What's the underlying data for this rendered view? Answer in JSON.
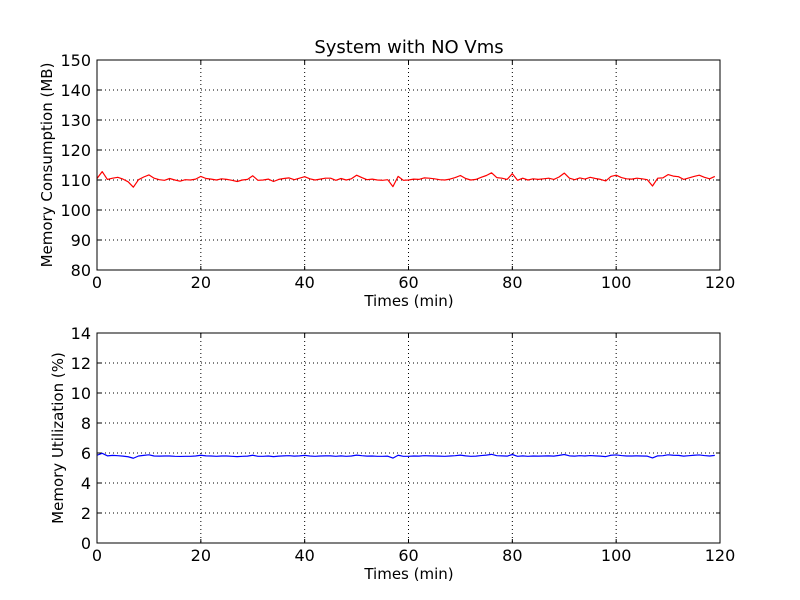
{
  "figure_title": "System with NO Vms",
  "chart_data": [
    {
      "type": "line",
      "title": "System with NO Vms",
      "xlabel": "Times (min)",
      "ylabel": "Memory Consumption (MB)",
      "xlim": [
        0,
        120
      ],
      "ylim": [
        80,
        150
      ],
      "xticks": [
        "0",
        "20",
        "40",
        "60",
        "80",
        "100",
        "120"
      ],
      "yticks": [
        "80",
        "90",
        "100",
        "110",
        "120",
        "130",
        "140",
        "150"
      ],
      "grid": true,
      "color": "#ff0000",
      "x": [
        0,
        1,
        2,
        3,
        4,
        5,
        6,
        7,
        8,
        9,
        10,
        11,
        12,
        13,
        14,
        15,
        16,
        17,
        18,
        19,
        20,
        21,
        22,
        23,
        24,
        25,
        26,
        27,
        28,
        29,
        30,
        31,
        32,
        33,
        34,
        35,
        36,
        37,
        38,
        39,
        40,
        41,
        42,
        43,
        44,
        45,
        46,
        47,
        48,
        49,
        50,
        51,
        52,
        53,
        54,
        55,
        56,
        57,
        58,
        59,
        60,
        61,
        62,
        63,
        64,
        65,
        66,
        67,
        68,
        69,
        70,
        71,
        72,
        73,
        74,
        75,
        76,
        77,
        78,
        79,
        80,
        81,
        82,
        83,
        84,
        85,
        86,
        87,
        88,
        89,
        90,
        91,
        92,
        93,
        94,
        95,
        96,
        97,
        98,
        99,
        100,
        101,
        102,
        103,
        104,
        105,
        106,
        107,
        108,
        109,
        110,
        111,
        112,
        113,
        114,
        115,
        116,
        117,
        118,
        119
      ],
      "y": [
        110.5,
        112.8,
        110.2,
        110.6,
        110.9,
        110.3,
        109.4,
        107.6,
        110.1,
        111.0,
        111.7,
        110.6,
        110.1,
        109.9,
        110.5,
        110.0,
        109.6,
        110.1,
        110.0,
        110.3,
        111.2,
        110.5,
        110.3,
        110.0,
        110.4,
        110.2,
        109.9,
        109.5,
        110.0,
        110.2,
        111.4,
        109.9,
        110.0,
        110.3,
        109.5,
        110.2,
        110.5,
        110.7,
        110.1,
        110.6,
        111.1,
        110.4,
        110.0,
        110.3,
        110.6,
        110.6,
        109.9,
        110.5,
        110.0,
        110.4,
        111.6,
        110.8,
        110.1,
        110.3,
        110.0,
        109.9,
        110.1,
        107.8,
        111.2,
        109.9,
        110.0,
        110.3,
        110.2,
        110.7,
        110.6,
        110.4,
        110.1,
        110.0,
        110.3,
        110.8,
        111.5,
        110.5,
        110.0,
        110.2,
        110.9,
        111.5,
        112.4,
        110.8,
        110.6,
        110.2,
        112.1,
        109.9,
        110.6,
        110.0,
        110.4,
        110.2,
        110.4,
        110.6,
        110.2,
        111.0,
        112.3,
        110.6,
        110.1,
        110.7,
        110.3,
        110.9,
        110.5,
        110.2,
        109.7,
        111.2,
        111.6,
        110.8,
        110.4,
        110.3,
        110.6,
        110.4,
        110.1,
        108.0,
        110.6,
        110.7,
        111.8,
        111.3,
        111.1,
        110.2,
        110.7,
        111.2,
        111.6,
        110.9,
        110.4,
        111.2
      ]
    },
    {
      "type": "line",
      "title": "",
      "xlabel": "Times (min)",
      "ylabel": "Memory Utilization (%)",
      "xlim": [
        0,
        120
      ],
      "ylim": [
        0,
        14
      ],
      "xticks": [
        "0",
        "20",
        "40",
        "60",
        "80",
        "100",
        "120"
      ],
      "yticks": [
        "0",
        "2",
        "4",
        "6",
        "8",
        "10",
        "12",
        "14"
      ],
      "grid": true,
      "color": "#0000ff",
      "x": [
        0,
        1,
        2,
        3,
        4,
        5,
        6,
        7,
        8,
        9,
        10,
        11,
        12,
        13,
        14,
        15,
        16,
        17,
        18,
        19,
        20,
        21,
        22,
        23,
        24,
        25,
        26,
        27,
        28,
        29,
        30,
        31,
        32,
        33,
        34,
        35,
        36,
        37,
        38,
        39,
        40,
        41,
        42,
        43,
        44,
        45,
        46,
        47,
        48,
        49,
        50,
        51,
        52,
        53,
        54,
        55,
        56,
        57,
        58,
        59,
        60,
        61,
        62,
        63,
        64,
        65,
        66,
        67,
        68,
        69,
        70,
        71,
        72,
        73,
        74,
        75,
        76,
        77,
        78,
        79,
        80,
        81,
        82,
        83,
        84,
        85,
        86,
        87,
        88,
        89,
        90,
        91,
        92,
        93,
        94,
        95,
        96,
        97,
        98,
        99,
        100,
        101,
        102,
        103,
        104,
        105,
        106,
        107,
        108,
        109,
        110,
        111,
        112,
        113,
        114,
        115,
        116,
        117,
        118,
        119
      ],
      "y": [
        5.85,
        5.98,
        5.81,
        5.84,
        5.82,
        5.79,
        5.75,
        5.65,
        5.8,
        5.84,
        5.88,
        5.8,
        5.79,
        5.8,
        5.8,
        5.78,
        5.77,
        5.78,
        5.78,
        5.8,
        5.85,
        5.81,
        5.8,
        5.78,
        5.8,
        5.8,
        5.78,
        5.76,
        5.78,
        5.79,
        5.85,
        5.78,
        5.78,
        5.8,
        5.76,
        5.79,
        5.81,
        5.82,
        5.79,
        5.81,
        5.84,
        5.8,
        5.78,
        5.8,
        5.81,
        5.81,
        5.78,
        5.81,
        5.78,
        5.8,
        5.86,
        5.82,
        5.79,
        5.8,
        5.78,
        5.78,
        5.79,
        5.66,
        5.85,
        5.78,
        5.78,
        5.8,
        5.79,
        5.82,
        5.81,
        5.8,
        5.79,
        5.78,
        5.8,
        5.82,
        5.86,
        5.81,
        5.78,
        5.79,
        5.83,
        5.86,
        5.91,
        5.82,
        5.81,
        5.79,
        5.9,
        5.78,
        5.81,
        5.78,
        5.8,
        5.79,
        5.8,
        5.81,
        5.79,
        5.84,
        5.9,
        5.81,
        5.79,
        5.82,
        5.8,
        5.83,
        5.81,
        5.79,
        5.76,
        5.85,
        5.87,
        5.83,
        5.8,
        5.8,
        5.81,
        5.8,
        5.79,
        5.67,
        5.81,
        5.82,
        5.88,
        5.85,
        5.84,
        5.79,
        5.82,
        5.85,
        5.87,
        5.83,
        5.8,
        5.84
      ]
    }
  ]
}
